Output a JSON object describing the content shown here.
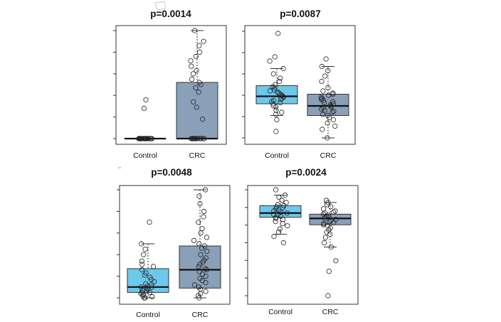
{
  "chart_data": [
    {
      "type": "box",
      "title": "p=0.0014",
      "categories": [
        "Control",
        "CRC"
      ],
      "xlabel": "",
      "ylabel": "",
      "ylim": [
        0,
        1
      ],
      "grid": false,
      "series": [
        {
          "color": "#6dc8ec",
          "box": {
            "whisker_low": 0.0,
            "q1": 0.0,
            "median": 0.0,
            "q3": 0.0,
            "whisker_high": 0.0
          },
          "points": [
            0.0,
            0.0,
            0.0,
            0.0,
            0.0,
            0.0,
            0.0,
            0.0,
            0.0,
            0.0,
            0.0,
            0.0,
            0.0,
            0.0,
            0.0,
            0.0,
            0.0,
            0.0,
            0.0,
            0.0,
            0.0,
            0.0,
            0.0,
            0.0,
            0.0,
            0.0,
            0.0,
            0.0,
            0.28,
            0.36
          ]
        },
        {
          "color": "#8aa0b9",
          "box": {
            "whisker_low": 0.0,
            "q1": 0.0,
            "median": 0.0,
            "q3": 0.52,
            "whisker_high": 1.0
          },
          "points": [
            0.0,
            0.0,
            0.0,
            0.0,
            0.0,
            0.0,
            0.0,
            0.0,
            0.0,
            0.0,
            0.0,
            0.0,
            0.0,
            0.0,
            0.0,
            0.18,
            0.29,
            0.34,
            0.43,
            0.47,
            0.5,
            0.52,
            0.55,
            0.6,
            0.63,
            0.67,
            0.72,
            0.76,
            0.8,
            0.86,
            0.9,
            1.0
          ]
        }
      ]
    },
    {
      "type": "box",
      "title": "p=0.0087",
      "categories": [
        "Control",
        "CRC"
      ],
      "xlabel": "",
      "ylabel": "",
      "ylim": [
        0,
        1
      ],
      "grid": false,
      "series": [
        {
          "color": "#6dc8ec",
          "box": {
            "whisker_low": 0.21,
            "q1": 0.32,
            "median": 0.39,
            "q3": 0.49,
            "whisker_high": 0.65
          },
          "points": [
            0.06,
            0.17,
            0.22,
            0.24,
            0.26,
            0.29,
            0.3,
            0.32,
            0.33,
            0.34,
            0.35,
            0.36,
            0.37,
            0.38,
            0.39,
            0.4,
            0.41,
            0.42,
            0.43,
            0.44,
            0.45,
            0.47,
            0.48,
            0.5,
            0.53,
            0.56,
            0.6,
            0.65,
            0.72,
            0.76,
            0.98
          ]
        },
        {
          "color": "#8aa0b9",
          "box": {
            "whisker_low": 0.0,
            "q1": 0.21,
            "median": 0.3,
            "q3": 0.41,
            "whisker_high": 0.67
          },
          "points": [
            0.0,
            0.08,
            0.11,
            0.14,
            0.17,
            0.19,
            0.21,
            0.22,
            0.24,
            0.25,
            0.26,
            0.27,
            0.28,
            0.29,
            0.3,
            0.31,
            0.32,
            0.33,
            0.34,
            0.35,
            0.36,
            0.37,
            0.38,
            0.4,
            0.41,
            0.42,
            0.44,
            0.47,
            0.53,
            0.58,
            0.63,
            0.67,
            0.74
          ]
        }
      ]
    },
    {
      "type": "box",
      "title": "p=0.0048",
      "categories": [
        "Control",
        "CRC"
      ],
      "xlabel": "",
      "ylabel": "",
      "ylim": [
        0,
        1
      ],
      "grid": false,
      "series": [
        {
          "color": "#6dc8ec",
          "box": {
            "whisker_low": 0.0,
            "q1": 0.05,
            "median": 0.1,
            "q3": 0.27,
            "whisker_high": 0.5
          },
          "points": [
            0.0,
            0.0,
            0.01,
            0.02,
            0.03,
            0.04,
            0.05,
            0.05,
            0.06,
            0.07,
            0.08,
            0.09,
            0.1,
            0.1,
            0.11,
            0.12,
            0.13,
            0.15,
            0.17,
            0.19,
            0.21,
            0.23,
            0.26,
            0.29,
            0.31,
            0.34,
            0.4,
            0.45,
            0.5,
            0.7
          ]
        },
        {
          "color": "#8aa0b9",
          "box": {
            "whisker_low": 0.0,
            "q1": 0.09,
            "median": 0.26,
            "q3": 0.48,
            "whisker_high": 1.0
          },
          "points": [
            0.0,
            0.02,
            0.04,
            0.06,
            0.08,
            0.1,
            0.12,
            0.14,
            0.16,
            0.18,
            0.2,
            0.22,
            0.24,
            0.26,
            0.27,
            0.29,
            0.31,
            0.33,
            0.35,
            0.37,
            0.4,
            0.43,
            0.46,
            0.48,
            0.5,
            0.53,
            0.56,
            0.6,
            0.64,
            0.7,
            0.75,
            0.8,
            0.87,
            0.94,
            1.0
          ]
        }
      ]
    },
    {
      "type": "box",
      "title": "p=0.0024",
      "categories": [
        "Control",
        "CRC"
      ],
      "xlabel": "",
      "ylabel": "",
      "ylim": [
        0,
        1
      ],
      "grid": false,
      "series": [
        {
          "color": "#6dc8ec",
          "box": {
            "whisker_low": 0.58,
            "q1": 0.74,
            "median": 0.78,
            "q3": 0.85,
            "whisker_high": 0.95
          },
          "points": [
            0.5,
            0.56,
            0.6,
            0.63,
            0.66,
            0.68,
            0.7,
            0.72,
            0.73,
            0.74,
            0.75,
            0.76,
            0.77,
            0.78,
            0.79,
            0.8,
            0.81,
            0.82,
            0.83,
            0.84,
            0.85,
            0.86,
            0.88,
            0.9,
            0.93,
            0.95,
            1.0
          ]
        },
        {
          "color": "#8aa0b9",
          "box": {
            "whisker_low": 0.46,
            "q1": 0.67,
            "median": 0.73,
            "q3": 0.77,
            "whisker_high": 0.88
          },
          "points": [
            0.0,
            0.23,
            0.33,
            0.46,
            0.5,
            0.55,
            0.58,
            0.6,
            0.62,
            0.64,
            0.66,
            0.67,
            0.68,
            0.69,
            0.7,
            0.71,
            0.72,
            0.73,
            0.74,
            0.75,
            0.76,
            0.77,
            0.78,
            0.79,
            0.8,
            0.82,
            0.84,
            0.86,
            0.88,
            0.9
          ]
        }
      ]
    }
  ]
}
